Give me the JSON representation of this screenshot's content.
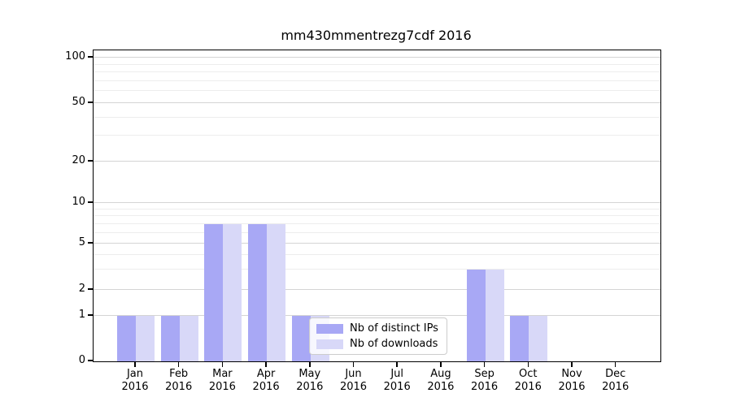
{
  "chart_data": {
    "type": "bar",
    "title": "mm430mmentrezg7cdf 2016",
    "xlabel": "",
    "ylabel": "",
    "scale": "symlog",
    "grid": true,
    "legend_position": "lower center (inside plot, overlapping May bar)",
    "categories": [
      "Jan 2016",
      "Feb 2016",
      "Mar 2016",
      "Apr 2016",
      "May 2016",
      "Jun 2016",
      "Jul 2016",
      "Aug 2016",
      "Sep 2016",
      "Oct 2016",
      "Nov 2016",
      "Dec 2016"
    ],
    "series": [
      {
        "name": "Nb of distinct IPs",
        "color": "#a8a8f5",
        "values": [
          1,
          1,
          7,
          7,
          1,
          0,
          0,
          0,
          3,
          1,
          0,
          0
        ]
      },
      {
        "name": "Nb of downloads",
        "color": "#d8d8f8",
        "values": [
          1,
          1,
          7,
          7,
          1,
          0,
          0,
          0,
          3,
          1,
          0,
          0
        ]
      }
    ],
    "yticks": [
      0,
      1,
      2,
      5,
      10,
      20,
      50,
      100
    ],
    "minor_gridline_values": [
      3,
      4,
      6,
      7,
      8,
      9,
      30,
      40,
      60,
      70,
      80,
      90
    ],
    "ylim": [
      0,
      115
    ]
  },
  "colors": {
    "distinct_ips_bar": "#a8a8f5",
    "downloads_bar": "#d8d8f8",
    "major_grid": "#d4d4d4",
    "minor_grid": "#ededed",
    "axis": "#000000"
  }
}
